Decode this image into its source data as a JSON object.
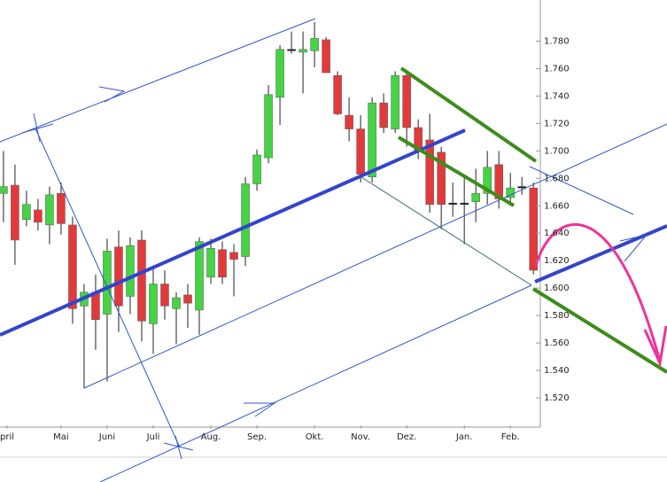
{
  "chart_data": {
    "type": "candlestick",
    "up_color": "#44d444",
    "down_color": "#e23a3a",
    "flat_color": "#222222",
    "open": [
      1.669,
      1.675,
      1.65,
      1.657,
      1.646,
      1.669,
      1.646,
      1.587,
      1.597,
      1.581,
      1.63,
      1.594,
      1.635,
      1.574,
      1.603,
      1.585,
      1.595,
      1.584,
      1.608,
      1.628,
      1.626,
      1.623,
      1.676,
      1.695,
      1.739,
      1.774,
      1.772,
      1.773,
      1.781,
      1.755,
      1.726,
      1.716,
      1.681,
      1.735,
      1.716,
      1.755,
      1.717,
      1.708,
      1.699,
      1.662,
      1.662,
      1.663,
      1.669,
      1.69,
      1.666,
      1.674,
      1.673
    ],
    "high": [
      1.7,
      1.69,
      1.671,
      1.665,
      1.674,
      1.677,
      1.652,
      1.603,
      1.61,
      1.636,
      1.642,
      1.637,
      1.642,
      1.616,
      1.613,
      1.597,
      1.603,
      1.637,
      1.636,
      1.634,
      1.632,
      1.681,
      1.701,
      1.748,
      1.777,
      1.787,
      1.787,
      1.794,
      1.783,
      1.758,
      1.739,
      1.726,
      1.739,
      1.742,
      1.758,
      1.758,
      1.723,
      1.727,
      1.703,
      1.677,
      1.681,
      1.687,
      1.7,
      1.7,
      1.684,
      1.681,
      1.677
    ],
    "low": [
      1.648,
      1.617,
      1.645,
      1.642,
      1.632,
      1.639,
      1.574,
      1.527,
      1.555,
      1.532,
      1.568,
      1.581,
      1.561,
      1.552,
      1.577,
      1.559,
      1.571,
      1.566,
      1.603,
      1.603,
      1.594,
      1.616,
      1.671,
      1.691,
      1.719,
      1.771,
      1.742,
      1.761,
      1.758,
      1.726,
      1.707,
      1.677,
      1.677,
      1.713,
      1.713,
      1.703,
      1.694,
      1.655,
      1.643,
      1.652,
      1.632,
      1.648,
      1.661,
      1.658,
      1.66,
      1.668,
      1.61
    ],
    "close": [
      1.674,
      1.635,
      1.661,
      1.648,
      1.668,
      1.647,
      1.585,
      1.597,
      1.577,
      1.627,
      1.587,
      1.631,
      1.576,
      1.603,
      1.587,
      1.593,
      1.589,
      1.634,
      1.629,
      1.608,
      1.621,
      1.676,
      1.697,
      1.741,
      1.774,
      1.774,
      1.774,
      1.782,
      1.757,
      1.727,
      1.716,
      1.683,
      1.735,
      1.717,
      1.755,
      1.717,
      1.7,
      1.661,
      1.661,
      1.662,
      1.662,
      1.669,
      1.688,
      1.665,
      1.673,
      1.674,
      1.613
    ],
    "xlim": [
      -0.3,
      46.6
    ],
    "xticks": [
      {
        "value": 0.3,
        "label": "pril"
      },
      {
        "value": 5,
        "label": "Mai"
      },
      {
        "value": 9,
        "label": "Juni"
      },
      {
        "value": 13,
        "label": "Juli"
      },
      {
        "value": 18,
        "label": "Aug."
      },
      {
        "value": 22,
        "label": "Sep."
      },
      {
        "value": 27,
        "label": "Okt."
      },
      {
        "value": 31,
        "label": "Nov."
      },
      {
        "value": 35,
        "label": "Dez."
      },
      {
        "value": 40,
        "label": "Jan."
      },
      {
        "value": 44,
        "label": "Feb."
      }
    ],
    "ylim": [
      1.5,
      1.81
    ],
    "yticks": [
      {
        "value": 1.52,
        "label": "1.520"
      },
      {
        "value": 1.54,
        "label": "1.540"
      },
      {
        "value": 1.56,
        "label": "1.560"
      },
      {
        "value": 1.58,
        "label": "1.580"
      },
      {
        "value": 1.6,
        "label": "1.600"
      },
      {
        "value": 1.62,
        "label": "1.620"
      },
      {
        "value": 1.64,
        "label": "1.640"
      },
      {
        "value": 1.66,
        "label": "1.660"
      },
      {
        "value": 1.68,
        "label": "1.680"
      },
      {
        "value": 1.7,
        "label": "1.700"
      },
      {
        "value": 1.72,
        "label": "1.720"
      },
      {
        "value": 1.74,
        "label": "1.740"
      },
      {
        "value": 1.76,
        "label": "1.760"
      },
      {
        "value": 1.78,
        "label": "1.780"
      }
    ]
  }
}
